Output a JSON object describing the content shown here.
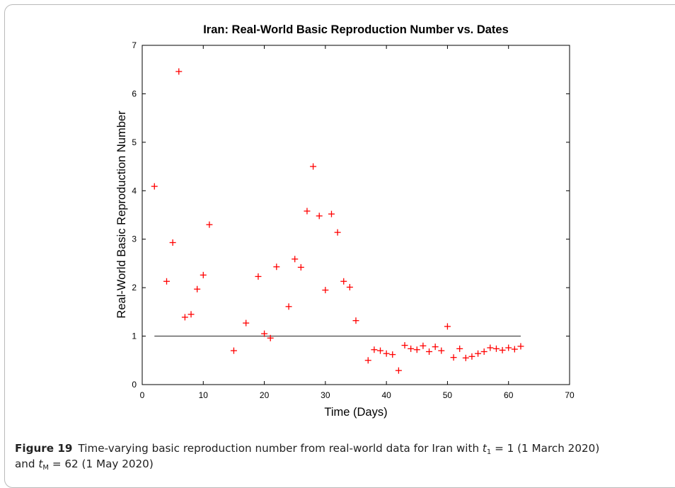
{
  "chart_data": {
    "type": "scatter",
    "title": "Iran: Real-World Basic Reproduction Number vs. Dates",
    "xlabel": "Time (Days)",
    "ylabel": "Real-World Basic Reproduction Number",
    "xlim": [
      0,
      70
    ],
    "ylim": [
      0,
      7
    ],
    "xticks": [
      0,
      10,
      20,
      30,
      40,
      50,
      60,
      70
    ],
    "yticks": [
      0,
      1,
      2,
      3,
      4,
      5,
      6,
      7
    ],
    "marker_color": "#ff0000",
    "marker": "+",
    "reference_line": {
      "y": 1,
      "x_start": 2,
      "x_end": 62,
      "color": "#555555"
    },
    "points": [
      {
        "x": 2,
        "y": 4.09
      },
      {
        "x": 4,
        "y": 2.13
      },
      {
        "x": 5,
        "y": 2.93
      },
      {
        "x": 6,
        "y": 6.46
      },
      {
        "x": 7,
        "y": 1.39
      },
      {
        "x": 8,
        "y": 1.45
      },
      {
        "x": 9,
        "y": 1.97
      },
      {
        "x": 10,
        "y": 2.26
      },
      {
        "x": 11,
        "y": 3.3
      },
      {
        "x": 15,
        "y": 0.7
      },
      {
        "x": 17,
        "y": 1.27
      },
      {
        "x": 19,
        "y": 2.23
      },
      {
        "x": 20,
        "y": 1.05
      },
      {
        "x": 21,
        "y": 0.96
      },
      {
        "x": 22,
        "y": 2.43
      },
      {
        "x": 24,
        "y": 1.61
      },
      {
        "x": 25,
        "y": 2.59
      },
      {
        "x": 26,
        "y": 2.42
      },
      {
        "x": 27,
        "y": 3.58
      },
      {
        "x": 28,
        "y": 4.5
      },
      {
        "x": 29,
        "y": 3.48
      },
      {
        "x": 30,
        "y": 1.95
      },
      {
        "x": 31,
        "y": 3.52
      },
      {
        "x": 32,
        "y": 3.14
      },
      {
        "x": 33,
        "y": 2.13
      },
      {
        "x": 34,
        "y": 2.01
      },
      {
        "x": 35,
        "y": 1.32
      },
      {
        "x": 37,
        "y": 0.5
      },
      {
        "x": 38,
        "y": 0.72
      },
      {
        "x": 39,
        "y": 0.7
      },
      {
        "x": 40,
        "y": 0.64
      },
      {
        "x": 41,
        "y": 0.62
      },
      {
        "x": 42,
        "y": 0.29
      },
      {
        "x": 43,
        "y": 0.81
      },
      {
        "x": 44,
        "y": 0.74
      },
      {
        "x": 45,
        "y": 0.72
      },
      {
        "x": 46,
        "y": 0.8
      },
      {
        "x": 47,
        "y": 0.68
      },
      {
        "x": 48,
        "y": 0.78
      },
      {
        "x": 49,
        "y": 0.7
      },
      {
        "x": 50,
        "y": 1.2
      },
      {
        "x": 51,
        "y": 0.56
      },
      {
        "x": 52,
        "y": 0.74
      },
      {
        "x": 53,
        "y": 0.55
      },
      {
        "x": 54,
        "y": 0.58
      },
      {
        "x": 55,
        "y": 0.64
      },
      {
        "x": 56,
        "y": 0.68
      },
      {
        "x": 57,
        "y": 0.76
      },
      {
        "x": 58,
        "y": 0.74
      },
      {
        "x": 59,
        "y": 0.71
      },
      {
        "x": 60,
        "y": 0.76
      },
      {
        "x": 61,
        "y": 0.73
      },
      {
        "x": 62,
        "y": 0.79
      }
    ]
  },
  "caption": {
    "figure_label": "Figure 19",
    "text_part1": "Time-varying basic reproduction number from real-world data for Iran with ",
    "t1_var": "t",
    "t1_sub": "1",
    "t1_value": " = 1 (1 March 2020)",
    "text_part2": "and ",
    "tm_var": "t",
    "tm_sub": "M",
    "tm_value": " = 62 (1 May 2020)"
  }
}
